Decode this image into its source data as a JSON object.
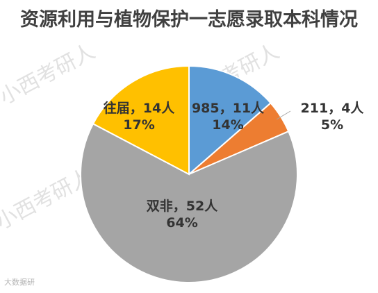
{
  "watermark": "小西考研人",
  "credit": "大数据研",
  "colors": {
    "blue": "#5b9bd5",
    "orange": "#ed7d31",
    "gray": "#a5a5a5",
    "yellow": "#ffc000"
  },
  "chart_data": {
    "type": "pie",
    "title": "资源利用与植物保护一志愿录取本科情况",
    "legend": "none",
    "slices": [
      {
        "name": "985",
        "count": 11,
        "percent": 14,
        "color": "#5b9bd5",
        "label_line1": "985，11人",
        "label_line2": "14%"
      },
      {
        "name": "211",
        "count": 4,
        "percent": 5,
        "color": "#ed7d31",
        "label_line1": "211，4人",
        "label_line2": "5%"
      },
      {
        "name": "双非",
        "count": 52,
        "percent": 64,
        "color": "#a5a5a5",
        "label_line1": "双非，52人",
        "label_line2": "64%"
      },
      {
        "name": "往届",
        "count": 14,
        "percent": 17,
        "color": "#ffc000",
        "label_line1": "往届，14人",
        "label_line2": "17%"
      }
    ]
  }
}
